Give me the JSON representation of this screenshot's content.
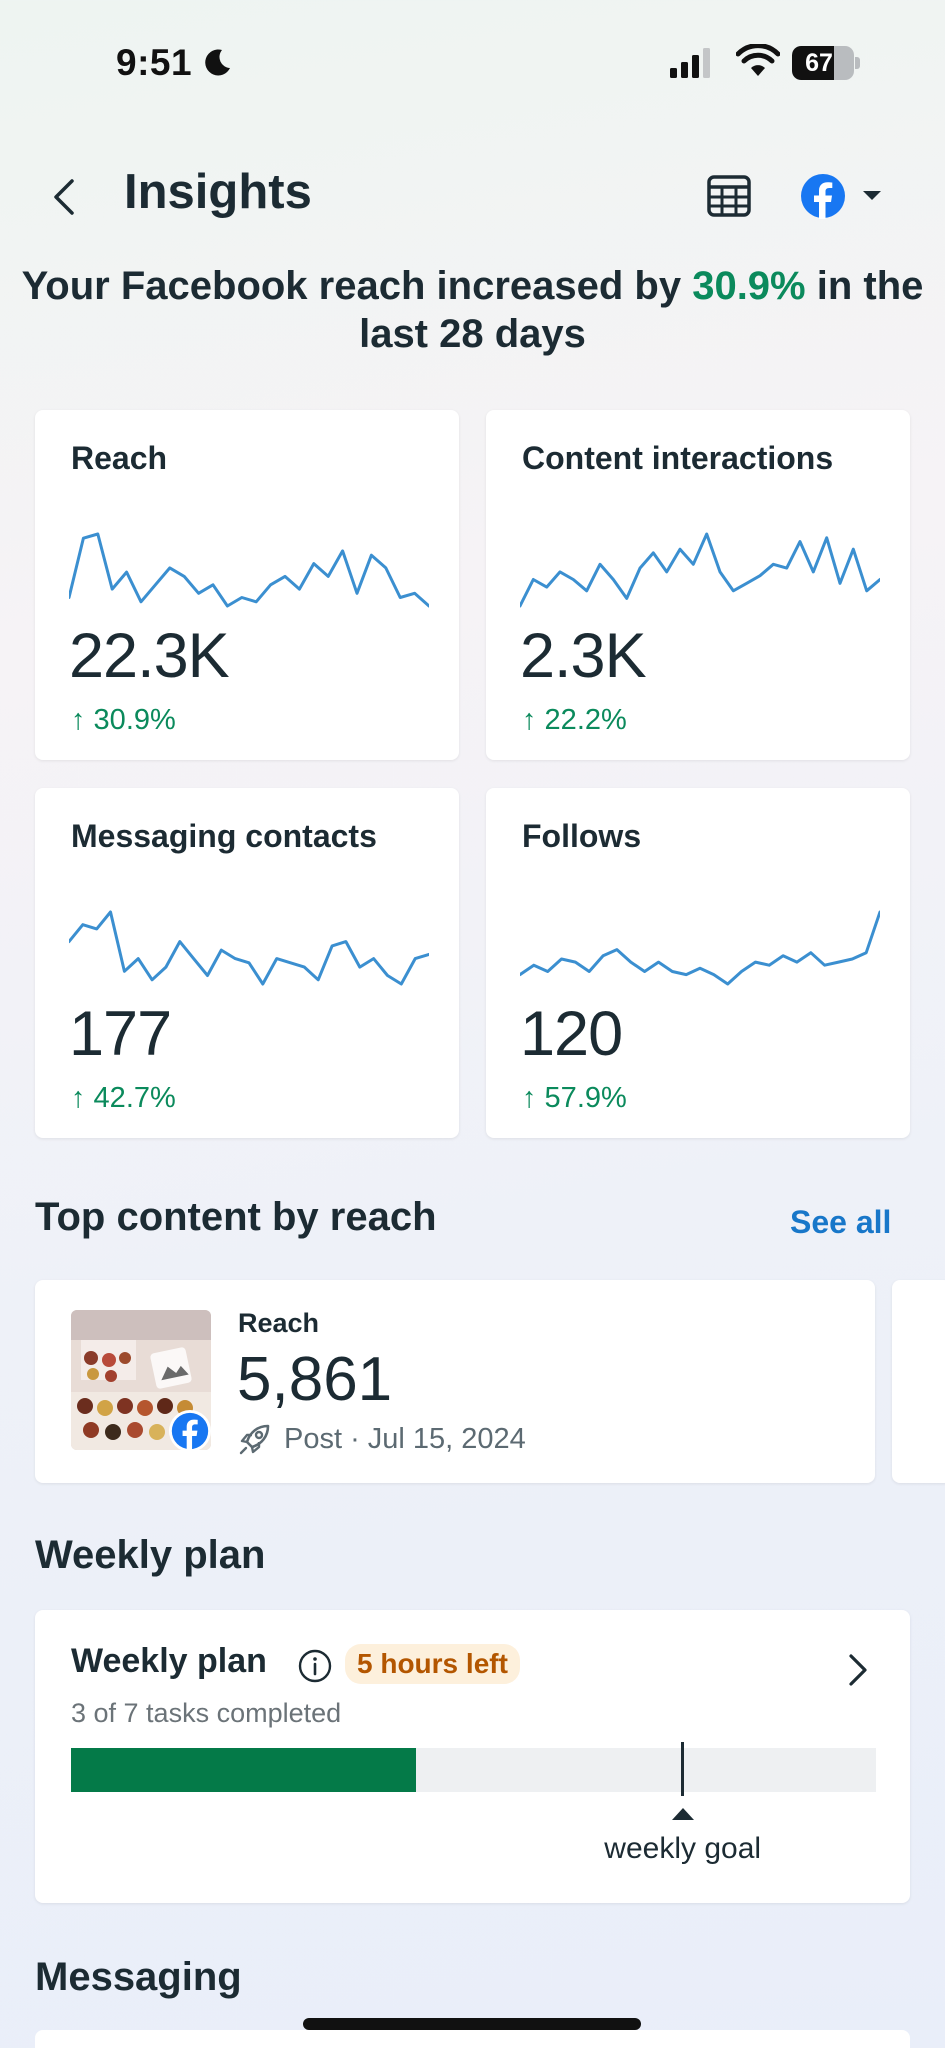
{
  "status_bar": {
    "time": "9:51",
    "battery": "67",
    "battery_level": 0.67
  },
  "header": {
    "title": "Insights"
  },
  "headline": {
    "text": "Your Facebook reach increased by ",
    "pct": "30.9%",
    "text2": " in the last 28 days"
  },
  "metrics": [
    {
      "label": "Reach",
      "value": "22.3K",
      "change": "↑ 30.9%",
      "trend": [
        60,
        88,
        90,
        64,
        72,
        58,
        66,
        74,
        70,
        62,
        66,
        56,
        60,
        58,
        66,
        70,
        64,
        76,
        70,
        82,
        62,
        80,
        74,
        60,
        62,
        56
      ]
    },
    {
      "label": "Content interactions",
      "value": "2.3K",
      "change": "↑ 22.2%",
      "trend": [
        52,
        66,
        62,
        70,
        66,
        60,
        74,
        66,
        56,
        72,
        80,
        70,
        82,
        74,
        90,
        70,
        60,
        64,
        68,
        74,
        72,
        86,
        70,
        88,
        64,
        82,
        60,
        66
      ]
    },
    {
      "label": "Messaging contacts",
      "value": "177",
      "change": "↑ 42.7%",
      "trend": [
        74,
        82,
        80,
        88,
        60,
        66,
        56,
        62,
        74,
        66,
        58,
        70,
        66,
        64,
        54,
        66,
        64,
        62,
        56,
        72,
        74,
        62,
        66,
        58,
        54,
        66,
        68
      ]
    },
    {
      "label": "Follows",
      "value": "120",
      "change": "↑ 57.9%",
      "trend": [
        56,
        62,
        58,
        66,
        64,
        58,
        68,
        72,
        64,
        58,
        64,
        58,
        56,
        60,
        56,
        50,
        58,
        64,
        62,
        68,
        64,
        70,
        62,
        64,
        66,
        70,
        96
      ]
    }
  ],
  "top_content": {
    "title": "Top content by reach",
    "see_all": "See all",
    "item": {
      "label": "Reach",
      "value": "5,861",
      "meta": "Post · Jul 15, 2024"
    }
  },
  "weekly_plan": {
    "section_title": "Weekly plan",
    "title": "Weekly plan",
    "badge": "5 hours left",
    "subtitle": "3 of 7 tasks completed",
    "completed": 3,
    "total": 7,
    "goal_fraction": 0.76,
    "goal_label": "weekly goal"
  },
  "messaging": {
    "section_title": "Messaging"
  },
  "colors": {
    "accent_green": "#0b8a5c",
    "sparkline": "#3b8fd0",
    "link_blue": "#1877c9",
    "progress": "#047a48",
    "facebook": "#1877f2"
  }
}
